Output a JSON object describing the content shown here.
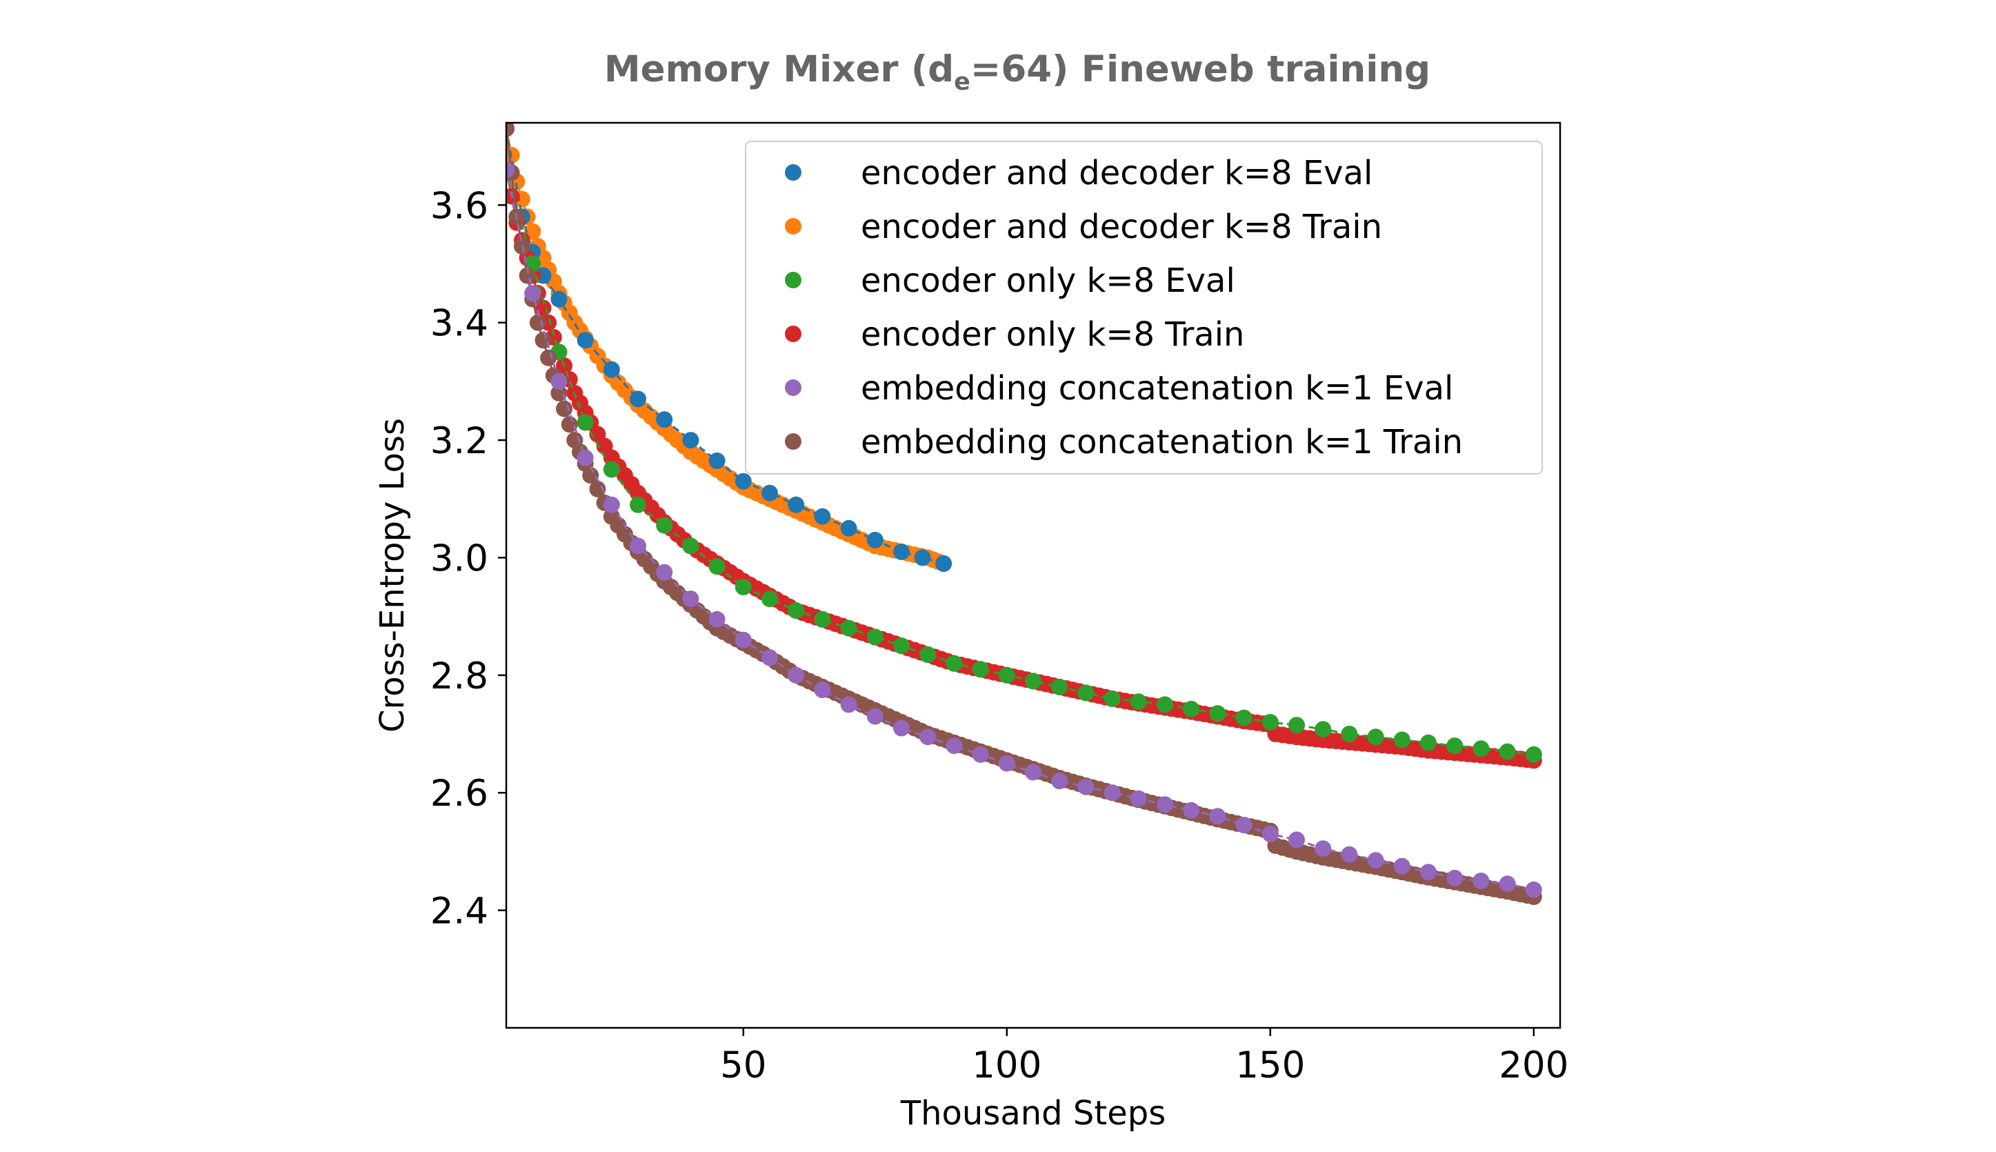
{
  "chart_data": {
    "type": "scatter",
    "title_prefix": "Memory Mixer (d",
    "title_sub": "e",
    "title_suffix": "=64)  Fineweb training",
    "xlabel": "Thousand Steps",
    "ylabel": "Cross-Entropy Loss",
    "xlim": [
      5,
      205
    ],
    "ylim": [
      2.2,
      3.74
    ],
    "xticks": [
      50,
      100,
      150,
      200
    ],
    "yticks": [
      2.4,
      2.6,
      2.8,
      3.0,
      3.2,
      3.4,
      3.6
    ],
    "xtick_labels": [
      "50",
      "100",
      "150",
      "200"
    ],
    "ytick_labels": [
      "2.4",
      "2.6",
      "2.8",
      "3.0",
      "3.2",
      "3.4",
      "3.6"
    ],
    "grid": false,
    "legend_position": "upper-right",
    "series": [
      {
        "name": "encoder and decoder k=8 Eval",
        "color": "#1f77b4",
        "x": [
          5,
          8,
          10,
          12,
          15,
          20,
          25,
          30,
          40,
          50,
          60,
          70,
          80,
          88
        ],
        "y": [
          3.73,
          3.58,
          3.52,
          3.48,
          3.44,
          3.37,
          3.32,
          3.27,
          3.2,
          3.13,
          3.09,
          3.05,
          3.01,
          2.99
        ]
      },
      {
        "name": "encoder and decoder k=8 Train",
        "color": "#ff7f0e",
        "x": [
          5,
          7,
          9,
          11,
          13,
          15,
          18,
          21,
          25,
          30,
          35,
          40,
          45,
          50,
          55,
          60,
          65,
          70,
          75,
          80,
          85,
          88
        ],
        "y": [
          3.73,
          3.64,
          3.58,
          3.53,
          3.49,
          3.45,
          3.4,
          3.36,
          3.31,
          3.26,
          3.22,
          3.18,
          3.15,
          3.12,
          3.1,
          3.08,
          3.06,
          3.04,
          3.02,
          3.01,
          3.0,
          2.99
        ]
      },
      {
        "name": "encoder only k=8 Eval",
        "color": "#2ca02c",
        "x": [
          5,
          10,
          15,
          20,
          25,
          30,
          40,
          50,
          60,
          70,
          80,
          90,
          100,
          110,
          120,
          130,
          140,
          150,
          155,
          160,
          165,
          170,
          175,
          180,
          185,
          190,
          195,
          200
        ],
        "y": [
          3.66,
          3.5,
          3.35,
          3.23,
          3.15,
          3.09,
          3.02,
          2.95,
          2.91,
          2.88,
          2.85,
          2.82,
          2.8,
          2.78,
          2.76,
          2.75,
          2.735,
          2.72,
          2.715,
          2.708,
          2.7,
          2.695,
          2.69,
          2.685,
          2.68,
          2.675,
          2.67,
          2.665
        ]
      },
      {
        "name": "encoder only k=8 Train",
        "color": "#d62728",
        "x": [
          5,
          7,
          9,
          11,
          13,
          15,
          18,
          21,
          25,
          30,
          35,
          40,
          45,
          50,
          55,
          60,
          65,
          70,
          75,
          80,
          85,
          90,
          95,
          100,
          105,
          110,
          115,
          120,
          125,
          130,
          135,
          140,
          145,
          150,
          151,
          155,
          160,
          165,
          170,
          175,
          180,
          185,
          190,
          195,
          200
        ],
        "y": [
          3.66,
          3.57,
          3.51,
          3.45,
          3.4,
          3.35,
          3.28,
          3.23,
          3.17,
          3.11,
          3.06,
          3.02,
          2.99,
          2.96,
          2.935,
          2.91,
          2.895,
          2.88,
          2.865,
          2.85,
          2.835,
          2.82,
          2.81,
          2.8,
          2.79,
          2.78,
          2.77,
          2.76,
          2.752,
          2.745,
          2.738,
          2.73,
          2.722,
          2.716,
          2.7,
          2.695,
          2.69,
          2.686,
          2.682,
          2.678,
          2.672,
          2.668,
          2.664,
          2.66,
          2.655
        ]
      },
      {
        "name": "embedding concatenation k=1 Eval",
        "color": "#9467bd",
        "x": [
          5,
          10,
          15,
          20,
          25,
          30,
          40,
          50,
          60,
          70,
          80,
          90,
          100,
          110,
          120,
          130,
          140,
          150,
          155,
          160,
          165,
          170,
          175,
          180,
          185,
          190,
          195,
          200
        ],
        "y": [
          3.66,
          3.45,
          3.3,
          3.17,
          3.09,
          3.02,
          2.93,
          2.86,
          2.8,
          2.75,
          2.71,
          2.68,
          2.65,
          2.62,
          2.6,
          2.58,
          2.56,
          2.53,
          2.52,
          2.505,
          2.495,
          2.485,
          2.475,
          2.465,
          2.455,
          2.45,
          2.445,
          2.435
        ]
      },
      {
        "name": "embedding concatenation k=1 Train",
        "color": "#8c564b",
        "x": [
          5,
          7,
          9,
          11,
          13,
          15,
          18,
          21,
          25,
          30,
          35,
          40,
          45,
          50,
          55,
          60,
          65,
          70,
          75,
          80,
          85,
          90,
          95,
          100,
          105,
          110,
          115,
          120,
          125,
          130,
          135,
          140,
          145,
          150,
          151,
          155,
          160,
          165,
          170,
          175,
          180,
          185,
          190,
          195,
          200
        ],
        "y": [
          3.73,
          3.58,
          3.48,
          3.4,
          3.34,
          3.28,
          3.2,
          3.14,
          3.07,
          3.01,
          2.96,
          2.92,
          2.88,
          2.855,
          2.83,
          2.8,
          2.78,
          2.76,
          2.74,
          2.72,
          2.7,
          2.685,
          2.67,
          2.655,
          2.64,
          2.625,
          2.612,
          2.6,
          2.588,
          2.577,
          2.566,
          2.555,
          2.545,
          2.535,
          2.51,
          2.5,
          2.49,
          2.482,
          2.474,
          2.465,
          2.456,
          2.448,
          2.44,
          2.432,
          2.423
        ]
      }
    ]
  }
}
